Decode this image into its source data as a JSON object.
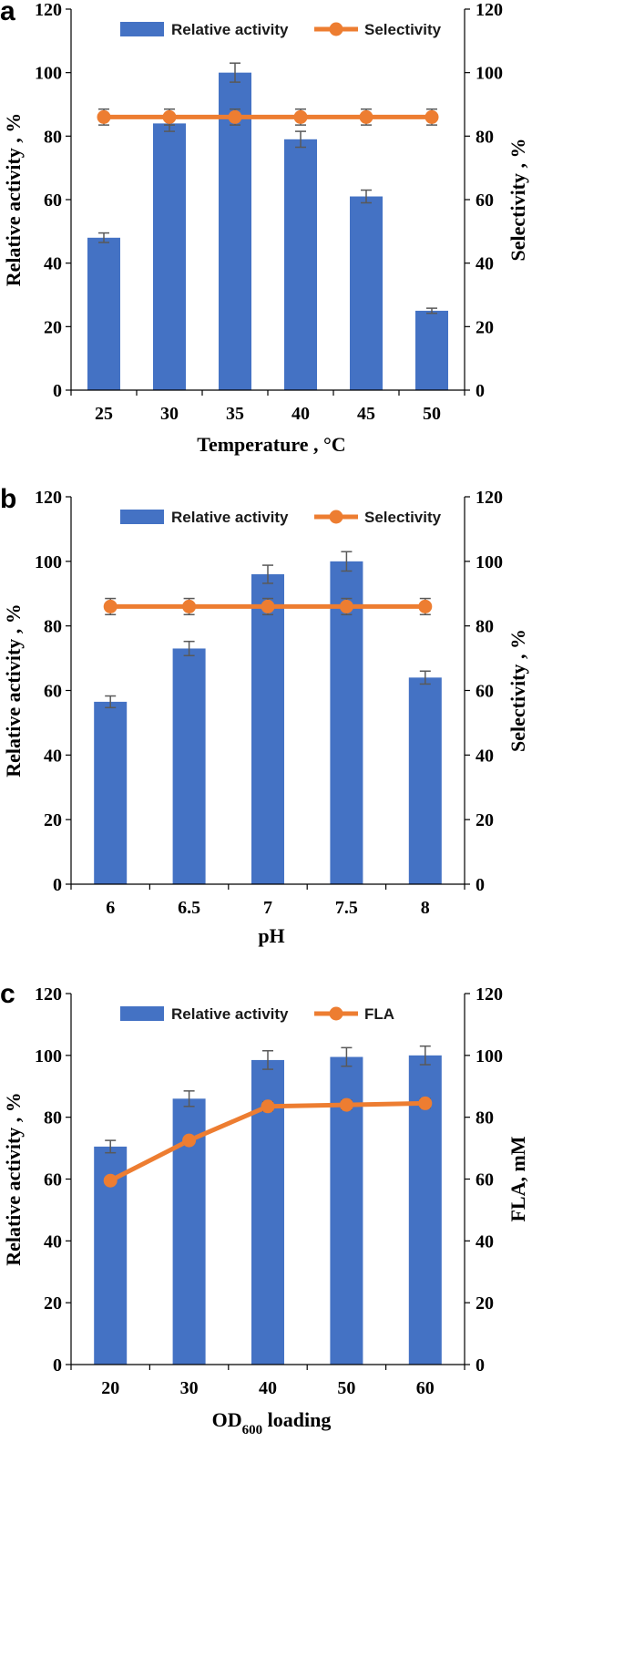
{
  "colors": {
    "bar": "#4472C4",
    "line": "#ED7D31",
    "error": "#595959",
    "axis": "#000000"
  },
  "chart_data": [
    {
      "panel": "a",
      "type": "bar+line",
      "categories": [
        "25",
        "30",
        "35",
        "40",
        "45",
        "50"
      ],
      "xlabel": "Temperature , °C",
      "ylabel_left": "Relative activity , %",
      "ylabel_right": "Selectivity , %",
      "ylim_left": [
        0,
        120
      ],
      "ylim_right": [
        0,
        120
      ],
      "yticks": [
        "0",
        "20",
        "40",
        "60",
        "80",
        "100",
        "120"
      ],
      "series": [
        {
          "name": "Relative activity",
          "kind": "bar",
          "axis": "left",
          "values": [
            48,
            84,
            100,
            79,
            61,
            25
          ],
          "errors": [
            1.5,
            2.5,
            3,
            2.5,
            2,
            0.8
          ]
        },
        {
          "name": "Selectivity",
          "kind": "line",
          "axis": "right",
          "values": [
            86,
            86,
            86,
            86,
            86,
            86
          ],
          "errors": [
            2.5,
            2.5,
            2.5,
            2.5,
            2.5,
            2.5
          ]
        }
      ]
    },
    {
      "panel": "b",
      "type": "bar+line",
      "categories": [
        "6",
        "6.5",
        "7",
        "7.5",
        "8"
      ],
      "xlabel": "pH",
      "ylabel_left": "Relative activity , %",
      "ylabel_right": "Selectivity , %",
      "ylim_left": [
        0,
        120
      ],
      "ylim_right": [
        0,
        120
      ],
      "yticks": [
        "0",
        "20",
        "40",
        "60",
        "80",
        "100",
        "120"
      ],
      "series": [
        {
          "name": "Relative activity",
          "kind": "bar",
          "axis": "left",
          "values": [
            56.5,
            73,
            96,
            100,
            64
          ],
          "errors": [
            1.8,
            2.2,
            2.8,
            3,
            2
          ]
        },
        {
          "name": "Selectivity",
          "kind": "line",
          "axis": "right",
          "values": [
            86,
            86,
            86,
            86,
            86
          ],
          "errors": [
            2.5,
            2.5,
            2.5,
            2.5,
            2.5
          ]
        }
      ]
    },
    {
      "panel": "c",
      "type": "bar+line",
      "categories": [
        "20",
        "30",
        "40",
        "50",
        "60"
      ],
      "xlabel": "OD600 loading",
      "xlabel_main": "OD",
      "xlabel_sub": "600",
      "xlabel_rest": " loading",
      "ylabel_left": "Relative activity , %",
      "ylabel_right": "FLA, mM",
      "ylim_left": [
        0,
        120
      ],
      "ylim_right": [
        0,
        120
      ],
      "yticks": [
        "0",
        "20",
        "40",
        "60",
        "80",
        "100",
        "120"
      ],
      "series": [
        {
          "name": "Relative activity",
          "kind": "bar",
          "axis": "left",
          "values": [
            70.5,
            86,
            98.5,
            99.5,
            100
          ],
          "errors": [
            2,
            2.5,
            3,
            3,
            3
          ]
        },
        {
          "name": "FLA",
          "kind": "line",
          "axis": "right",
          "values": [
            59.5,
            72.5,
            83.5,
            84,
            84.5
          ],
          "errors": [
            1,
            1.2,
            1.5,
            1.5,
            1.5
          ]
        }
      ]
    }
  ]
}
